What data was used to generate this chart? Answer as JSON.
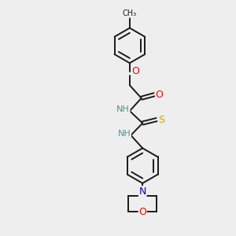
{
  "bg_color": "#eeeeee",
  "bond_color": "#1a1a1a",
  "atom_colors": {
    "O": "#ff0000",
    "N": "#0000cd",
    "S": "#ccaa00",
    "C": "#1a1a1a",
    "H": "#4a9a8a"
  },
  "bond_width": 1.4,
  "fig_width": 3.0,
  "fig_height": 3.0,
  "dpi": 100,
  "xlim": [
    0,
    10
  ],
  "ylim": [
    0,
    10
  ]
}
